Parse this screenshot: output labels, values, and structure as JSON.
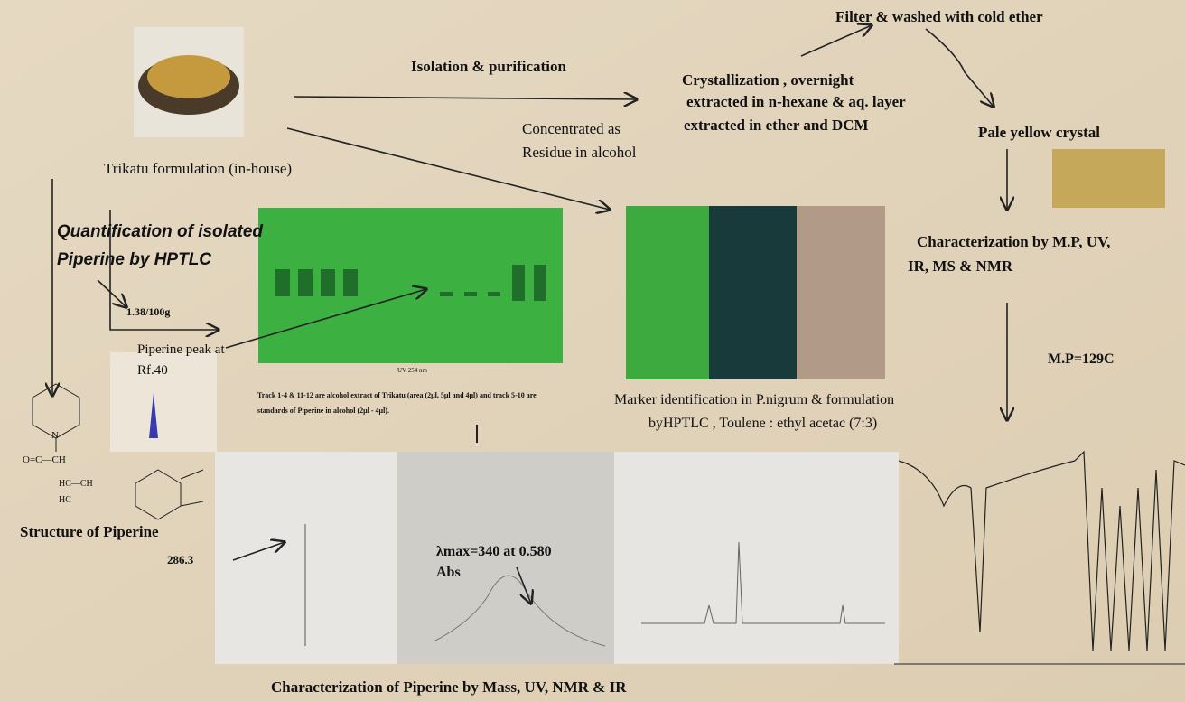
{
  "filter_step": "Filter & washed with cold ether",
  "isolation": "Isolation & purification",
  "crystallization": [
    "Crystallization , overnight",
    "extracted in n-hexane  &  aq. layer",
    "extracted in ether and DCM"
  ],
  "concentrated": [
    "Concentrated as",
    "Residue in alcohol"
  ],
  "pale_crystal": "Pale yellow crystal",
  "source": "Trikatu formulation (in-house)",
  "quantification": [
    "Quantification of  isolated",
    "Piperine by HPTLC"
  ],
  "quantity": "1.38/100g",
  "peak": [
    "Piperine peak at",
    "Rf.40"
  ],
  "characterization": [
    "Characterization by  M.P, UV,",
    "IR, MS & NMR"
  ],
  "melting_point": "M.P=129C",
  "tlc_caption": [
    "Track 1-4 & 11-12 are alcohol extract of Trikatu (area (2μl, 5μl and 4μl) and track 5-10 are",
    "standards of Piperine in alcohol (2μl - 4μl)."
  ],
  "tlc_label": "UV 254 nm",
  "marker": [
    "Marker identification in P.nigrum & formulation",
    "byHPTLC , Toulene : ethyl acetac (7:3)"
  ],
  "structure_title": "Structure of Piperine",
  "mass_peak": "286.3",
  "uv_max": [
    "λmax=340 at 0.580",
    "Abs"
  ],
  "bottom_caption": "Characterization  of Piperine by  Mass, UV,  NMR  & IR"
}
